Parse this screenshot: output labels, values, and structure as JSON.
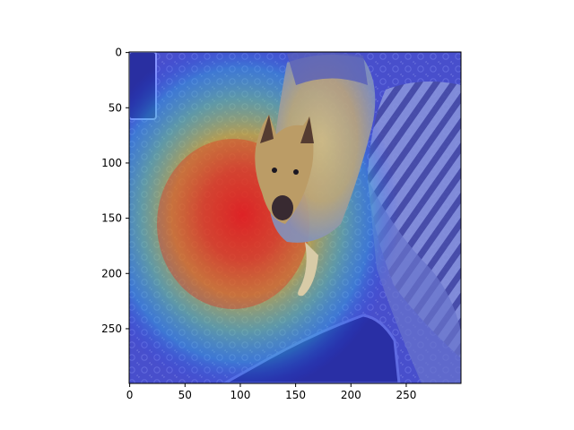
{
  "figure": {
    "x_ticks": [
      "0",
      "50",
      "100",
      "150",
      "200",
      "250"
    ],
    "y_ticks": [
      "0",
      "50",
      "100",
      "150",
      "200",
      "250"
    ],
    "image_extent": {
      "width": 300,
      "height": 300
    },
    "overlay": {
      "colormap": "jet",
      "hotspot_center": [
        100,
        165
      ],
      "description_colors": [
        "#ff2a00",
        "#ffd000",
        "#5fe07a",
        "#1e3cff"
      ]
    },
    "subject": "German shepherd dog lying on a rug",
    "colors": {
      "axis": "#000000",
      "background": "#ffffff"
    }
  }
}
